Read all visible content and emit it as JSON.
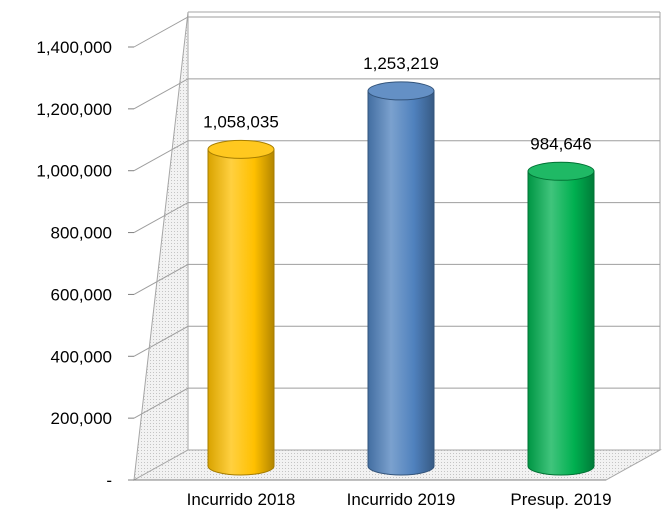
{
  "chart_data": {
    "type": "bar",
    "style": "3d-cylinder",
    "categories": [
      "Incurrido 2018",
      "Incurrido 2019",
      "Presup. 2019"
    ],
    "values": [
      1058035,
      1253219,
      984646
    ],
    "data_labels": [
      "1,058,035",
      "1,253,219",
      "984,646"
    ],
    "colors": [
      "#FFC000",
      "#4F81BD",
      "#00B050"
    ],
    "ylim": [
      0,
      1400000
    ],
    "y_ticks": [
      0,
      200000,
      400000,
      600000,
      800000,
      1000000,
      1200000,
      1400000
    ],
    "y_tick_labels": [
      "-",
      "200,000",
      "400,000",
      "600,000",
      "800,000",
      "1,000,000",
      "1,200,000",
      "1,400,000"
    ],
    "grid": true,
    "title": "",
    "xlabel": "",
    "ylabel": ""
  }
}
